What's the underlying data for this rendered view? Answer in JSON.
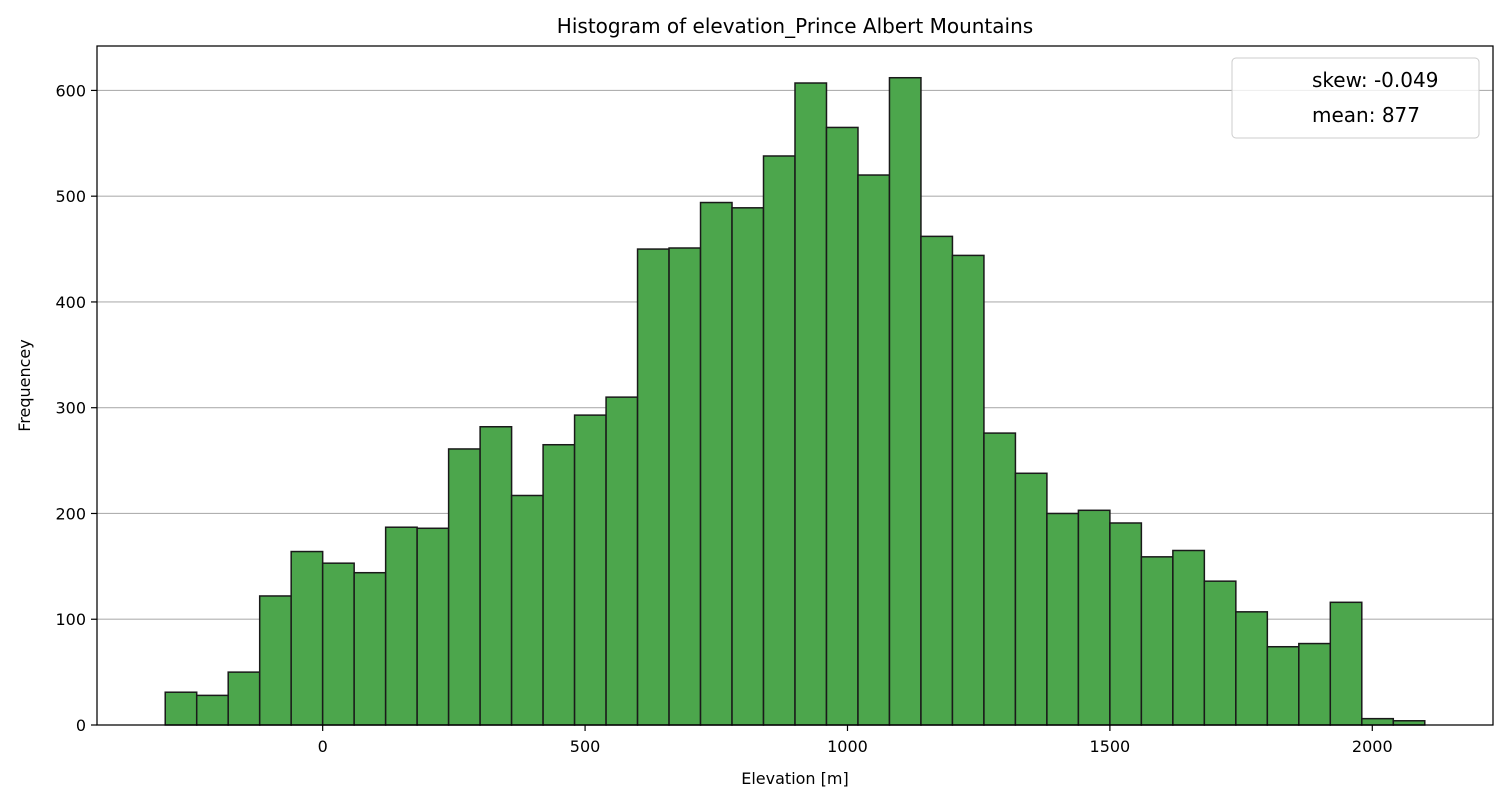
{
  "chart_data": {
    "type": "bar",
    "title": "Histogram of elevation_Prince Albert Mountains",
    "xlabel": "Elevation [m]",
    "ylabel": "Frequencey",
    "xlim": [
      -430,
      2230
    ],
    "ylim": [
      0,
      642
    ],
    "xticks": [
      0,
      500,
      1000,
      1500,
      2000
    ],
    "yticks": [
      0,
      100,
      200,
      300,
      400,
      500,
      600
    ],
    "grid": "y",
    "bin_start": -300,
    "bin_width": 60,
    "values": [
      31,
      28,
      50,
      122,
      164,
      153,
      144,
      187,
      186,
      261,
      282,
      217,
      265,
      293,
      310,
      450,
      451,
      494,
      489,
      538,
      607,
      565,
      520,
      612,
      462,
      444,
      276,
      238,
      200,
      203,
      191,
      159,
      165,
      136,
      107,
      74,
      77,
      116,
      6,
      4
    ],
    "bar_color": "#4ca64c",
    "edge_color": "#1a1a1a",
    "legend": {
      "placement": "top-right",
      "entries": [
        "skew: -0.049",
        "mean: 877"
      ]
    }
  }
}
